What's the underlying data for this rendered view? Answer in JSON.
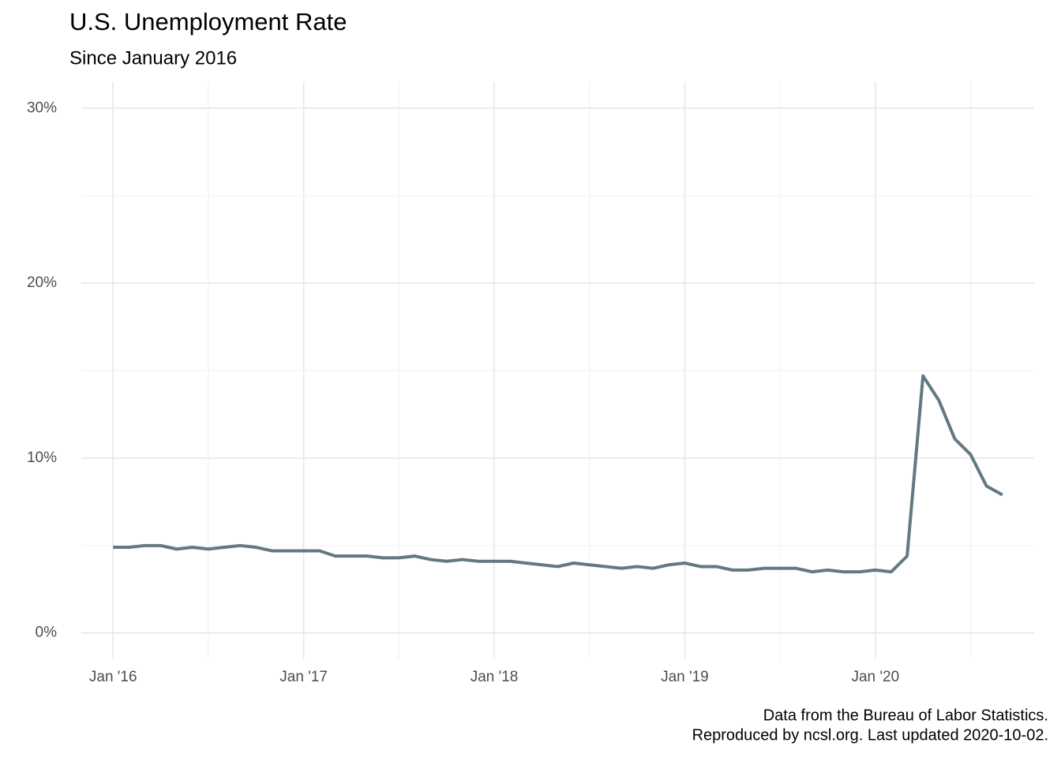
{
  "chart_data": {
    "type": "line",
    "title": "U.S. Unemployment Rate",
    "subtitle": "Since January 2016",
    "caption": [
      "Data from the Bureau of Labor Statistics.",
      "Reproduced by ncsl.org. Last updated 2020-10-02."
    ],
    "x": [
      "2016-01",
      "2016-02",
      "2016-03",
      "2016-04",
      "2016-05",
      "2016-06",
      "2016-07",
      "2016-08",
      "2016-09",
      "2016-10",
      "2016-11",
      "2016-12",
      "2017-01",
      "2017-02",
      "2017-03",
      "2017-04",
      "2017-05",
      "2017-06",
      "2017-07",
      "2017-08",
      "2017-09",
      "2017-10",
      "2017-11",
      "2017-12",
      "2018-01",
      "2018-02",
      "2018-03",
      "2018-04",
      "2018-05",
      "2018-06",
      "2018-07",
      "2018-08",
      "2018-09",
      "2018-10",
      "2018-11",
      "2018-12",
      "2019-01",
      "2019-02",
      "2019-03",
      "2019-04",
      "2019-05",
      "2019-06",
      "2019-07",
      "2019-08",
      "2019-09",
      "2019-10",
      "2019-11",
      "2019-12",
      "2020-01",
      "2020-02",
      "2020-03",
      "2020-04",
      "2020-05",
      "2020-06",
      "2020-07",
      "2020-08",
      "2020-09"
    ],
    "values": [
      4.9,
      4.9,
      5.0,
      5.0,
      4.8,
      4.9,
      4.8,
      4.9,
      5.0,
      4.9,
      4.7,
      4.7,
      4.7,
      4.7,
      4.4,
      4.4,
      4.4,
      4.3,
      4.3,
      4.4,
      4.2,
      4.1,
      4.2,
      4.1,
      4.1,
      4.1,
      4.0,
      3.9,
      3.8,
      4.0,
      3.9,
      3.8,
      3.7,
      3.8,
      3.7,
      3.9,
      4.0,
      3.8,
      3.8,
      3.6,
      3.6,
      3.7,
      3.7,
      3.7,
      3.5,
      3.6,
      3.5,
      3.5,
      3.6,
      3.5,
      4.4,
      14.7,
      13.3,
      11.1,
      10.2,
      8.4,
      7.9
    ],
    "color": "#637880",
    "xlim": [
      "2015-11",
      "2020-11"
    ],
    "xticks": [
      {
        "value": "2016-01",
        "label": "Jan '16"
      },
      {
        "value": "2017-01",
        "label": "Jan '17"
      },
      {
        "value": "2018-01",
        "label": "Jan '18"
      },
      {
        "value": "2019-01",
        "label": "Jan '19"
      },
      {
        "value": "2020-01",
        "label": "Jan '20"
      }
    ],
    "xminorticks": [
      "2016-07",
      "2017-07",
      "2018-07",
      "2019-07",
      "2020-07"
    ],
    "ylim": [
      -1.5,
      31.5
    ],
    "yticks": [
      {
        "value": 0,
        "label": "0%"
      },
      {
        "value": 10,
        "label": "10%"
      },
      {
        "value": 20,
        "label": "20%"
      },
      {
        "value": 30,
        "label": "30%"
      }
    ],
    "yminorticks": [
      5,
      15,
      25
    ],
    "grid": true
  }
}
